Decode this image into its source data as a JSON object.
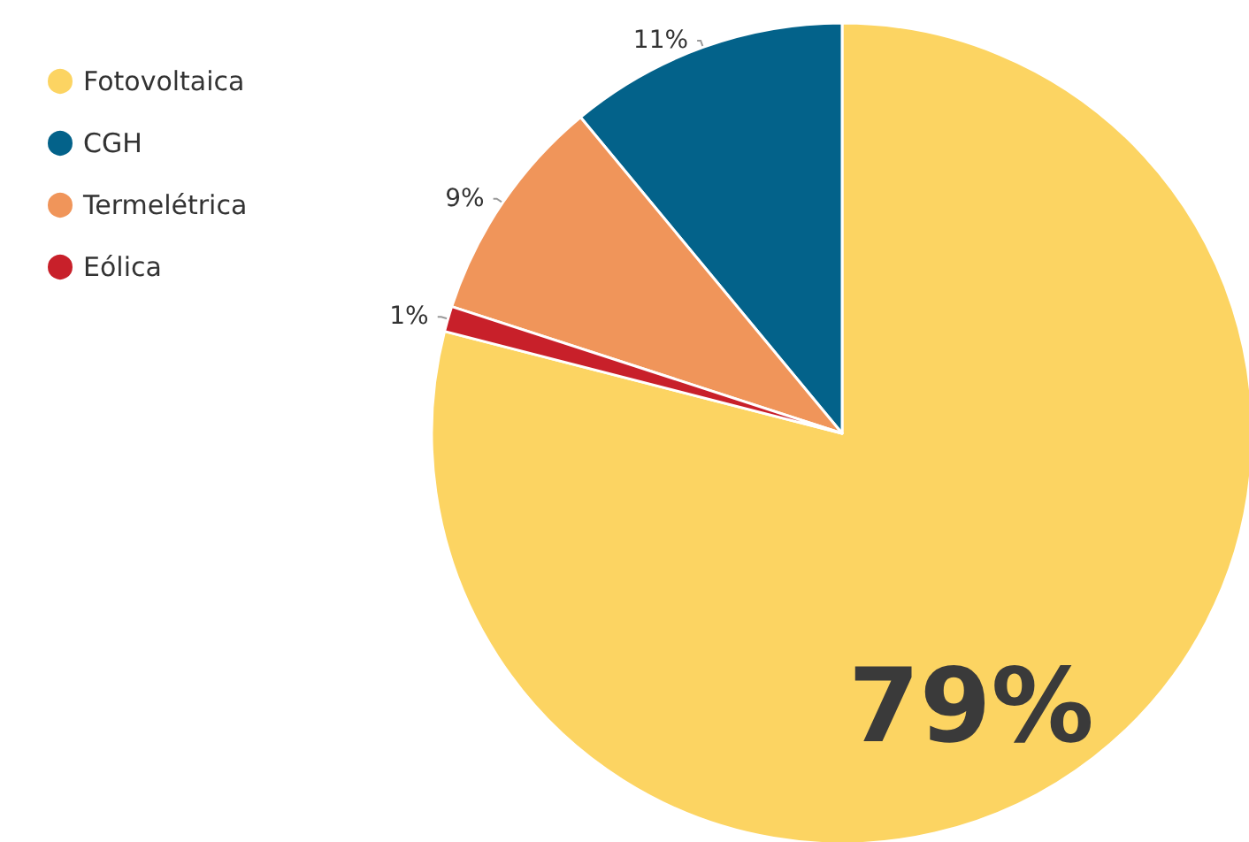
{
  "chart_data": {
    "type": "pie",
    "categories": [
      "Fotovoltaica",
      "CGH",
      "Termelétrica",
      "Eólica"
    ],
    "values": [
      79,
      11,
      9,
      1
    ],
    "colors": [
      "#fcd462",
      "#03628a",
      "#f0955a",
      "#c8202a"
    ],
    "value_labels": [
      "79%",
      "11%",
      "9%",
      "1%"
    ],
    "legend": "top left"
  }
}
